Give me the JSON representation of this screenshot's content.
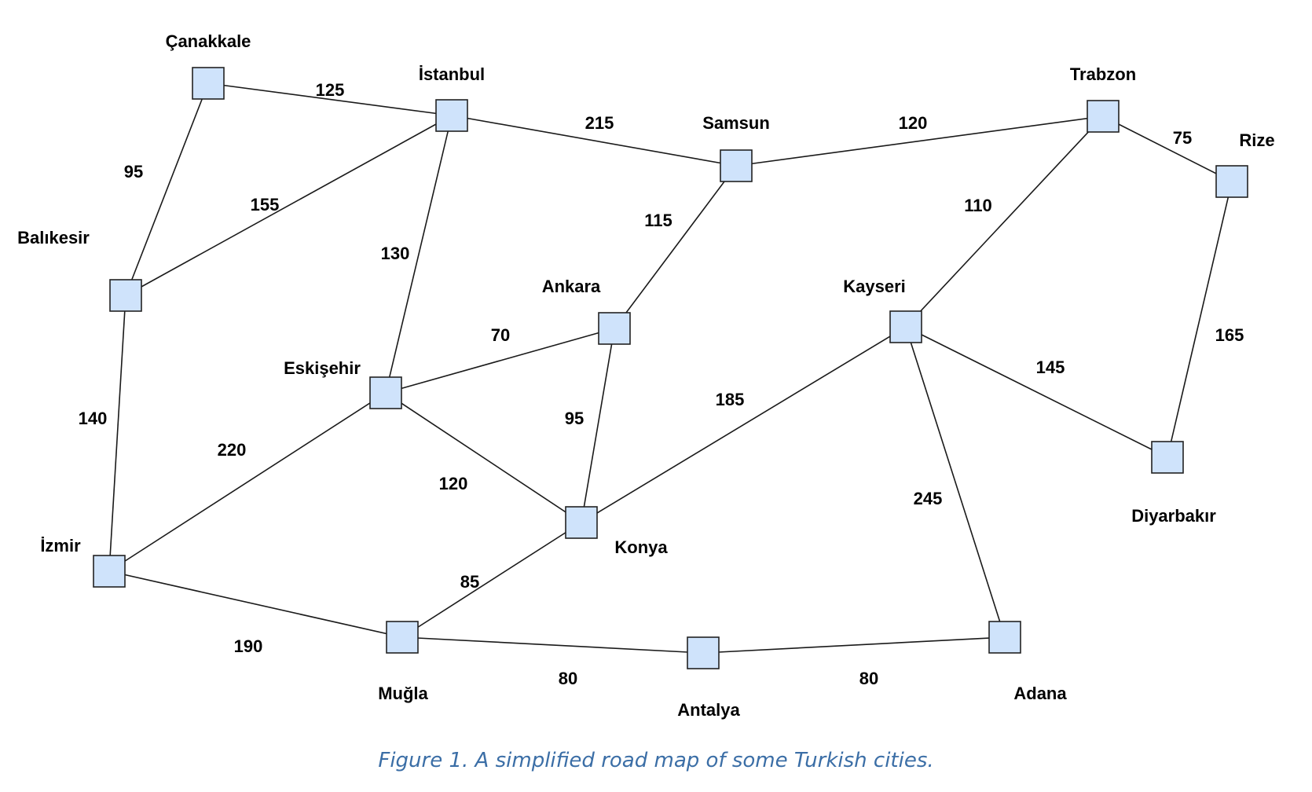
{
  "nodes": [
    {
      "id": "canakkale",
      "label": "Çanakkale"
    },
    {
      "id": "istanbul",
      "label": "İstanbul"
    },
    {
      "id": "samsun",
      "label": "Samsun"
    },
    {
      "id": "trabzon",
      "label": "Trabzon"
    },
    {
      "id": "rize",
      "label": "Rize"
    },
    {
      "id": "balikesir",
      "label": "Balıkesir"
    },
    {
      "id": "ankara",
      "label": "Ankara"
    },
    {
      "id": "kayseri",
      "label": "Kayseri"
    },
    {
      "id": "eskisehir",
      "label": "Eskişehir"
    },
    {
      "id": "diyarbakir",
      "label": "Diyarbakır"
    },
    {
      "id": "izmir",
      "label": "İzmir"
    },
    {
      "id": "konya",
      "label": "Konya"
    },
    {
      "id": "mugla",
      "label": "Muğla"
    },
    {
      "id": "antalya",
      "label": "Antalya"
    },
    {
      "id": "adana",
      "label": "Adana"
    }
  ],
  "edges": [
    {
      "from": "canakkale",
      "to": "istanbul",
      "distance": "125"
    },
    {
      "from": "canakkale",
      "to": "balikesir",
      "distance": "95"
    },
    {
      "from": "istanbul",
      "to": "samsun",
      "distance": "215"
    },
    {
      "from": "istanbul",
      "to": "balikesir",
      "distance": "155"
    },
    {
      "from": "istanbul",
      "to": "eskisehir",
      "distance": "130"
    },
    {
      "from": "samsun",
      "to": "trabzon",
      "distance": "120"
    },
    {
      "from": "samsun",
      "to": "ankara",
      "distance": "115"
    },
    {
      "from": "trabzon",
      "to": "rize",
      "distance": "75"
    },
    {
      "from": "trabzon",
      "to": "kayseri",
      "distance": "110"
    },
    {
      "from": "rize",
      "to": "diyarbakir",
      "distance": "165"
    },
    {
      "from": "balikesir",
      "to": "izmir",
      "distance": "140"
    },
    {
      "from": "eskisehir",
      "to": "ankara",
      "distance": "70"
    },
    {
      "from": "eskisehir",
      "to": "izmir",
      "distance": "220"
    },
    {
      "from": "eskisehir",
      "to": "konya",
      "distance": "120"
    },
    {
      "from": "ankara",
      "to": "konya",
      "distance": "95"
    },
    {
      "from": "kayseri",
      "to": "konya",
      "distance": "185"
    },
    {
      "from": "kayseri",
      "to": "diyarbakir",
      "distance": "145"
    },
    {
      "from": "kayseri",
      "to": "adana",
      "distance": "245"
    },
    {
      "from": "izmir",
      "to": "mugla",
      "distance": "190"
    },
    {
      "from": "konya",
      "to": "mugla",
      "distance": "85"
    },
    {
      "from": "mugla",
      "to": "antalya",
      "distance": "80"
    },
    {
      "from": "antalya",
      "to": "adana",
      "distance": "80"
    }
  ],
  "caption": "Figure 1. A simplified road map of some Turkish cities.",
  "colors": {
    "node_fill": "#cfe3fb",
    "caption": "#3b6ea6"
  }
}
